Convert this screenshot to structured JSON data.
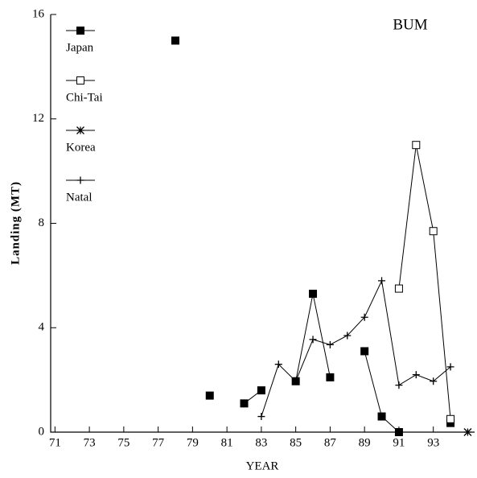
{
  "chart_data": {
    "type": "line",
    "annotation": "BUM",
    "x_label": "YEAR",
    "y_label": "Landing (MT)",
    "xlim": [
      70.75,
      95.4
    ],
    "xticks": [
      71,
      73,
      75,
      77,
      79,
      81,
      83,
      85,
      87,
      89,
      91,
      93
    ],
    "ylim": [
      0,
      16
    ],
    "yticks": [
      0,
      4,
      8,
      12,
      16
    ],
    "legend": "top-left",
    "series": [
      {
        "name": "Japan",
        "color": "#000000",
        "marker": "filled-square",
        "x": [
          78,
          79,
          80,
          81,
          82,
          83,
          84,
          85,
          86,
          87,
          88,
          89,
          90,
          91,
          92,
          93,
          94
        ],
        "values": [
          15,
          null,
          1.4,
          null,
          1.1,
          1.6,
          null,
          1.95,
          5.3,
          2.1,
          null,
          3.1,
          0.6,
          0,
          null,
          null,
          0.35
        ]
      },
      {
        "name": "Chi-Tai",
        "color": "#000000",
        "marker": "open-square",
        "x": [
          91,
          92,
          93,
          94
        ],
        "values": [
          5.5,
          11,
          7.7,
          0.5
        ]
      },
      {
        "name": "Korea",
        "color": "#000000",
        "marker": "asterisk",
        "x": [
          95
        ],
        "values": [
          0
        ]
      },
      {
        "name": "Natal",
        "color": "#000000",
        "marker": "plus",
        "x": [
          83,
          84,
          85,
          86,
          87,
          88,
          89,
          90,
          91,
          92,
          93,
          94
        ],
        "values": [
          0.6,
          2.6,
          1.95,
          3.55,
          3.35,
          3.7,
          4.4,
          5.8,
          1.8,
          2.2,
          1.95,
          2.5
        ]
      }
    ]
  }
}
